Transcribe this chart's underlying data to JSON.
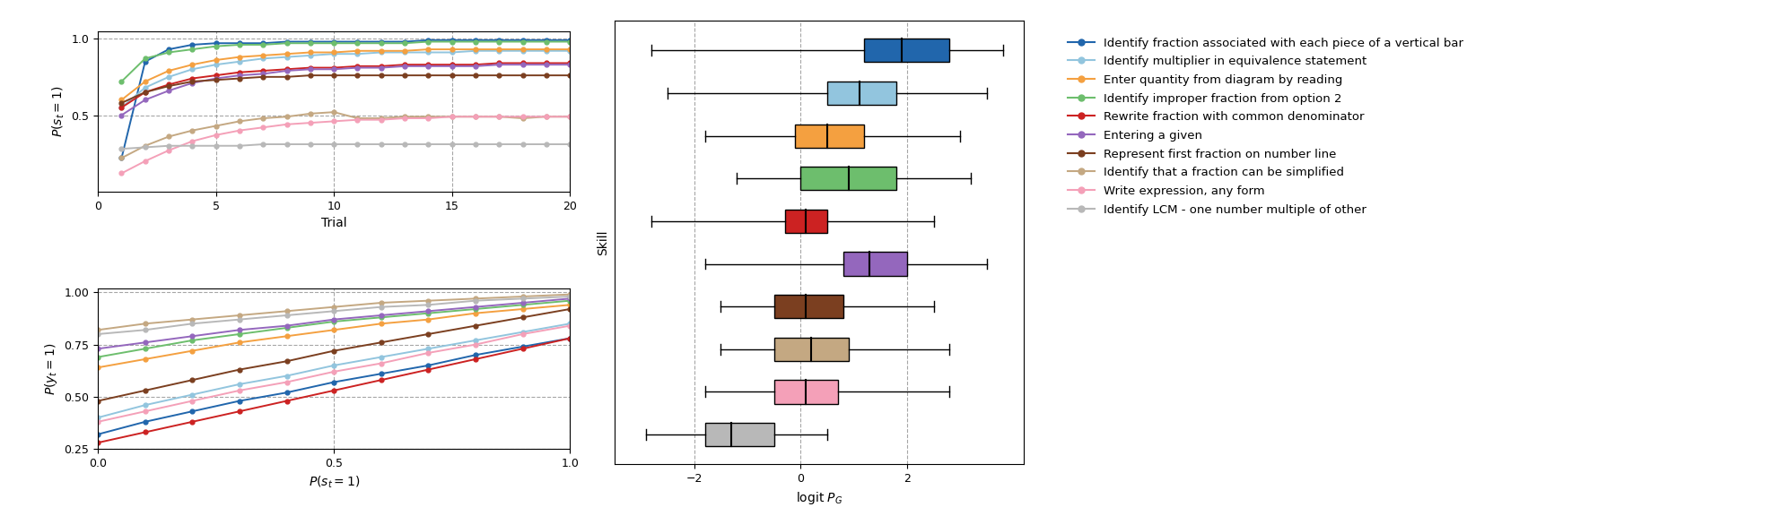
{
  "kc_names": [
    "Identify fraction associated with each piece of a vertical bar",
    "Identify multiplier in equivalence statement",
    "Enter quantity from diagram by reading",
    "Identify improper fraction from option 2",
    "Rewrite fraction with common denominator",
    "Entering a given",
    "Represent first fraction on number line",
    "Identify that a fraction can be simplified",
    "Write expression, any form",
    "Identify LCM - one number multiple of other"
  ],
  "kc_colors": [
    "#2166ac",
    "#92c5de",
    "#f4a040",
    "#6dbe6d",
    "#cc2222",
    "#9467bd",
    "#7b3f20",
    "#c4a882",
    "#f4a0b8",
    "#b8b8b8"
  ],
  "top_line_data": {
    "x": [
      1,
      2,
      3,
      4,
      5,
      6,
      7,
      8,
      9,
      10,
      11,
      12,
      13,
      14,
      15,
      16,
      17,
      18,
      19,
      20
    ],
    "curves": [
      [
        0.22,
        0.85,
        0.93,
        0.96,
        0.97,
        0.97,
        0.97,
        0.98,
        0.98,
        0.98,
        0.98,
        0.98,
        0.98,
        0.99,
        0.99,
        0.99,
        0.99,
        0.99,
        0.99,
        0.99
      ],
      [
        0.55,
        0.68,
        0.75,
        0.8,
        0.83,
        0.85,
        0.87,
        0.88,
        0.89,
        0.9,
        0.9,
        0.91,
        0.91,
        0.91,
        0.91,
        0.92,
        0.92,
        0.92,
        0.92,
        0.92
      ],
      [
        0.6,
        0.72,
        0.79,
        0.83,
        0.86,
        0.88,
        0.89,
        0.9,
        0.91,
        0.91,
        0.92,
        0.92,
        0.92,
        0.93,
        0.93,
        0.93,
        0.93,
        0.93,
        0.93,
        0.93
      ],
      [
        0.72,
        0.87,
        0.91,
        0.93,
        0.95,
        0.96,
        0.96,
        0.97,
        0.97,
        0.97,
        0.97,
        0.97,
        0.97,
        0.98,
        0.98,
        0.98,
        0.98,
        0.98,
        0.98,
        0.98
      ],
      [
        0.55,
        0.65,
        0.7,
        0.74,
        0.76,
        0.78,
        0.79,
        0.8,
        0.81,
        0.81,
        0.82,
        0.82,
        0.83,
        0.83,
        0.83,
        0.83,
        0.84,
        0.84,
        0.84,
        0.84
      ],
      [
        0.5,
        0.6,
        0.66,
        0.71,
        0.74,
        0.76,
        0.77,
        0.79,
        0.8,
        0.8,
        0.81,
        0.81,
        0.82,
        0.82,
        0.82,
        0.82,
        0.83,
        0.83,
        0.83,
        0.83
      ],
      [
        0.58,
        0.65,
        0.69,
        0.72,
        0.73,
        0.74,
        0.75,
        0.75,
        0.76,
        0.76,
        0.76,
        0.76,
        0.76,
        0.76,
        0.76,
        0.76,
        0.76,
        0.76,
        0.76,
        0.76
      ],
      [
        0.22,
        0.3,
        0.36,
        0.4,
        0.43,
        0.46,
        0.48,
        0.49,
        0.51,
        0.52,
        0.48,
        0.48,
        0.49,
        0.49,
        0.49,
        0.49,
        0.49,
        0.48,
        0.49,
        0.49
      ],
      [
        0.12,
        0.2,
        0.27,
        0.33,
        0.37,
        0.4,
        0.42,
        0.44,
        0.45,
        0.46,
        0.47,
        0.47,
        0.48,
        0.48,
        0.49,
        0.49,
        0.49,
        0.49,
        0.49,
        0.49
      ],
      [
        0.28,
        0.29,
        0.3,
        0.3,
        0.3,
        0.3,
        0.31,
        0.31,
        0.31,
        0.31,
        0.31,
        0.31,
        0.31,
        0.31,
        0.31,
        0.31,
        0.31,
        0.31,
        0.31,
        0.31
      ]
    ]
  },
  "bottom_line_data": {
    "x": [
      0.0,
      0.1,
      0.2,
      0.3,
      0.4,
      0.5,
      0.6,
      0.7,
      0.8,
      0.9,
      1.0
    ],
    "curves": [
      [
        0.32,
        0.38,
        0.43,
        0.48,
        0.52,
        0.57,
        0.61,
        0.65,
        0.7,
        0.74,
        0.78
      ],
      [
        0.4,
        0.46,
        0.51,
        0.56,
        0.6,
        0.65,
        0.69,
        0.73,
        0.77,
        0.81,
        0.85
      ],
      [
        0.64,
        0.68,
        0.72,
        0.76,
        0.79,
        0.82,
        0.85,
        0.87,
        0.9,
        0.92,
        0.94
      ],
      [
        0.69,
        0.73,
        0.77,
        0.8,
        0.83,
        0.86,
        0.88,
        0.9,
        0.92,
        0.94,
        0.96
      ],
      [
        0.28,
        0.33,
        0.38,
        0.43,
        0.48,
        0.53,
        0.58,
        0.63,
        0.68,
        0.73,
        0.78
      ],
      [
        0.73,
        0.76,
        0.79,
        0.82,
        0.84,
        0.87,
        0.89,
        0.91,
        0.93,
        0.95,
        0.97
      ],
      [
        0.48,
        0.53,
        0.58,
        0.63,
        0.67,
        0.72,
        0.76,
        0.8,
        0.84,
        0.88,
        0.92
      ],
      [
        0.82,
        0.85,
        0.87,
        0.89,
        0.91,
        0.93,
        0.95,
        0.96,
        0.97,
        0.98,
        0.99
      ],
      [
        0.38,
        0.43,
        0.48,
        0.53,
        0.57,
        0.62,
        0.66,
        0.71,
        0.75,
        0.8,
        0.84
      ],
      [
        0.8,
        0.82,
        0.85,
        0.87,
        0.89,
        0.91,
        0.93,
        0.94,
        0.96,
        0.97,
        0.98
      ]
    ]
  },
  "boxplot_data": {
    "whisker_low": [
      -2.8,
      -2.5,
      -1.8,
      -1.2,
      -2.8,
      -1.8,
      -1.5,
      -1.5,
      -1.8,
      -2.9
    ],
    "q1": [
      1.2,
      0.5,
      -0.1,
      0.0,
      -0.3,
      0.8,
      -0.5,
      -0.5,
      -0.5,
      -1.8
    ],
    "median": [
      1.9,
      1.1,
      0.5,
      0.9,
      0.1,
      1.3,
      0.1,
      0.2,
      0.1,
      -1.3
    ],
    "q3": [
      2.8,
      1.8,
      1.2,
      1.8,
      0.5,
      2.0,
      0.8,
      0.9,
      0.7,
      -0.5
    ],
    "whisker_high": [
      3.8,
      3.5,
      3.0,
      3.2,
      2.5,
      3.5,
      2.5,
      2.8,
      2.8,
      0.5
    ]
  }
}
